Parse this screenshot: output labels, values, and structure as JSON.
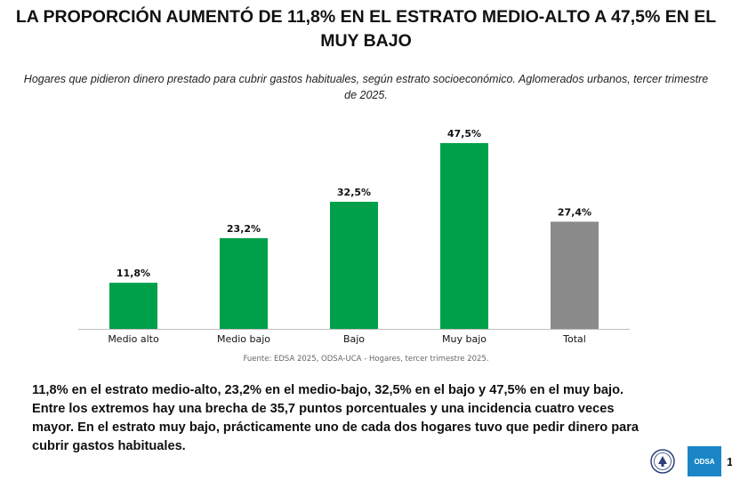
{
  "header": {
    "title": "LA PROPORCIÓN AUMENTÓ DE 11,8% EN EL ESTRATO MEDIO-ALTO A 47,5% EN EL MUY BAJO",
    "subtitle": "Hogares que pidieron dinero prestado para cubrir gastos habituales, según estrato socioeconómico. Aglomerados urbanos, tercer trimestre de 2025."
  },
  "chart_data": {
    "type": "bar",
    "title": "",
    "xlabel": "",
    "ylabel": "",
    "categories": [
      "Medio alto",
      "Medio bajo",
      "Bajo",
      "Muy bajo",
      "Total"
    ],
    "values": [
      11.8,
      23.2,
      32.5,
      47.5,
      27.4
    ],
    "data_labels": [
      "11,8%",
      "23,2%",
      "32,5%",
      "47,5%",
      "27,4%"
    ],
    "colors": [
      "#00a04b",
      "#00a04b",
      "#00a04b",
      "#00a04b",
      "#8a8a8a"
    ],
    "ylim": [
      0,
      50
    ],
    "grid": false,
    "legend": "none"
  },
  "source": "Fuente: EDSA 2025, ODSA-UCA - Hogares, tercer trimestre 2025.",
  "summary": "11,8% en el estrato medio-alto, 23,2% en el medio-bajo, 32,5% en el bajo y 47,5% en el muy bajo. Entre los extremos hay una brecha de 35,7 puntos porcentuales y una incidencia cuatro veces mayor. En el estrato muy bajo, prácticamente uno de cada dos hogares tuvo que pedir dinero para cubrir gastos habituales.",
  "footer": {
    "odsa_logo_text": "ODSA",
    "page_number": "1",
    "uca_logo_icon": "university-seal-icon"
  },
  "colors": {
    "bar_strata": "#00a04b",
    "bar_total": "#8a8a8a",
    "odsa_blue": "#1a86c8"
  }
}
